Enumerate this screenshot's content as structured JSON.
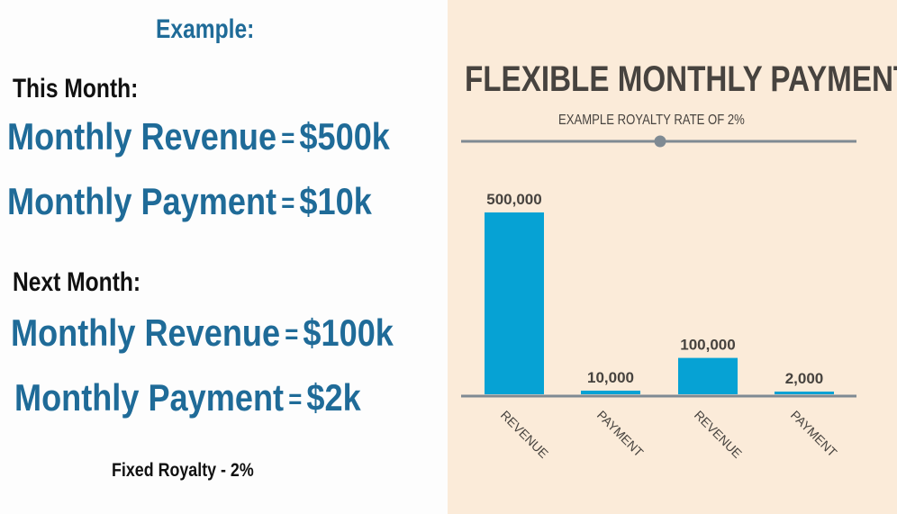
{
  "left": {
    "example_label": "Example:",
    "this_month": {
      "heading": "This Month:",
      "revenue_label": "Monthly Revenue",
      "revenue_value": "$500k",
      "payment_label": "Monthly Payment",
      "payment_value": "$10k"
    },
    "next_month": {
      "heading": "Next Month:",
      "revenue_label": "Monthly Revenue",
      "revenue_value": "$100k",
      "payment_label": "Monthly Payment",
      "payment_value": "$2k"
    },
    "equals": "=",
    "note": "Fixed Royalty - 2%"
  },
  "chart_data": {
    "type": "bar",
    "title": "FLEXIBLE MONTHLY PAYMENTS",
    "subtitle": "EXAMPLE ROYALTY RATE  OF 2%",
    "categories": [
      "REVENUE",
      "PAYMENT",
      "REVENUE",
      "PAYMENT"
    ],
    "values": [
      500000,
      10000,
      100000,
      2000
    ],
    "data_labels": [
      "500,000",
      "10,000",
      "100,000",
      "2,000"
    ],
    "ylim": [
      0,
      500000
    ],
    "grid": false,
    "legend": "none",
    "bar_color": "#06a2d4",
    "axis_color": "#7f8a93"
  }
}
